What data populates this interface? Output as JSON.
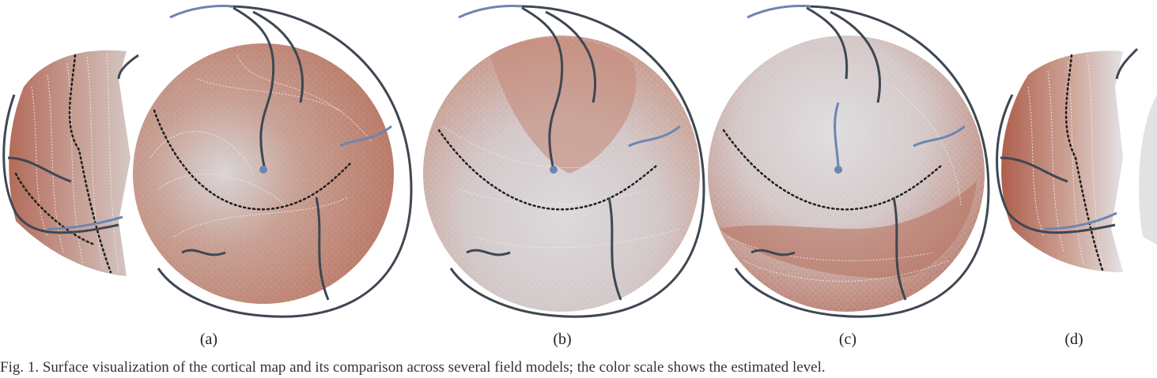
{
  "figure": {
    "colors": {
      "high": "#b87462",
      "mid": "#c9a397",
      "low": "#dcd9dc",
      "contour": "#f2ecea",
      "boundary": "#1e1e1e",
      "vessel_dark": "#3e4752",
      "vessel_blue": "#6b86b3"
    },
    "panels": [
      {
        "label": "(a)"
      },
      {
        "label": "(b)"
      },
      {
        "label": "(c)"
      },
      {
        "label": "(d)"
      }
    ]
  },
  "caption": {
    "text": "Fig. 1. Surface visualization of the cortical map and its comparison across several field models; the color scale shows the estimated level."
  }
}
